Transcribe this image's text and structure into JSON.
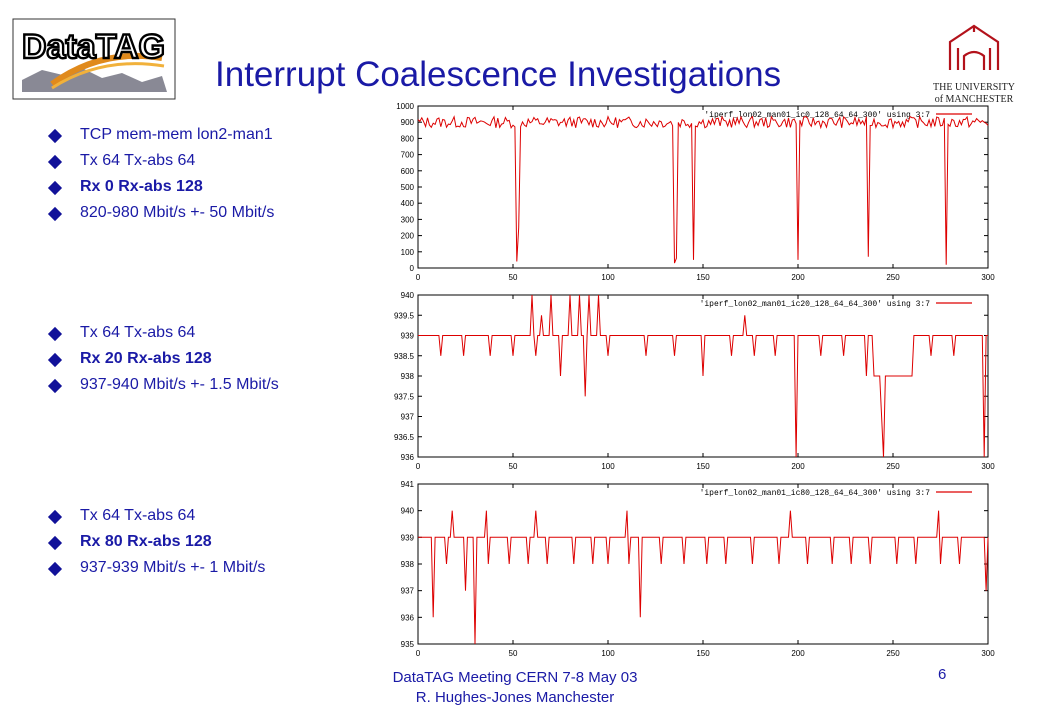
{
  "slide": {
    "title": "Interrupt Coalescence Investigations",
    "logo_left_text": "DataTAG",
    "logo_right_line1": "THE UNIVERSITY",
    "logo_right_line2": "of MANCHESTER",
    "footer_line1": "DataTAG Meeting CERN 7-8 May 03",
    "footer_line2": "R. Hughes-Jones  Manchester",
    "page_number": "6"
  },
  "bullet_groups": [
    {
      "items": [
        {
          "text": "TCP mem-mem  lon2-man1",
          "bold": false
        },
        {
          "text": "Tx 64 Tx-abs 64",
          "bold": false
        },
        {
          "text": "Rx 0 Rx-abs 128",
          "bold": true
        },
        {
          "text": "820-980 Mbit/s +- 50 Mbit/s",
          "bold": false
        }
      ]
    },
    {
      "items": [
        {
          "text": "Tx 64 Tx-abs 64",
          "bold": false
        },
        {
          "text": "Rx 20 Rx-abs 128",
          "bold": true
        },
        {
          "text": "937-940 Mbit/s +- 1.5 Mbit/s",
          "bold": false
        }
      ]
    },
    {
      "items": [
        {
          "text": "Tx 64 Tx-abs 64",
          "bold": false
        },
        {
          "text": "Rx 80 Rx-abs 128",
          "bold": true
        },
        {
          "text": "937-939 Mbit/s +- 1 Mbit/s",
          "bold": false
        }
      ]
    }
  ],
  "chart_data": [
    {
      "type": "line",
      "legend": "'iperf_lon02_man01_ic0_128_64_64_300' using 3:7",
      "legend_position": "top-right",
      "xlim": [
        0,
        300
      ],
      "ylim": [
        0,
        1000
      ],
      "xticks": [
        0,
        50,
        100,
        150,
        200,
        250,
        300
      ],
      "yticks": [
        0,
        100,
        200,
        300,
        400,
        500,
        600,
        700,
        800,
        900,
        1000
      ],
      "color": "#dd0000",
      "baseline": 900,
      "noise": 35,
      "dips": [
        [
          52,
          40
        ],
        [
          53,
          250
        ],
        [
          135,
          30
        ],
        [
          136,
          60
        ],
        [
          145,
          50
        ],
        [
          200,
          50
        ],
        [
          237,
          70
        ],
        [
          278,
          20
        ]
      ]
    },
    {
      "type": "line",
      "legend": "'iperf_lon02_man01_ic20_128_64_64_300' using 3:7",
      "legend_position": "top-right",
      "xlim": [
        0,
        300
      ],
      "ylim": [
        936,
        940
      ],
      "xticks": [
        0,
        50,
        100,
        150,
        200,
        250,
        300
      ],
      "yticks": [
        936,
        936.5,
        937,
        937.5,
        938,
        938.5,
        939,
        939.5,
        940
      ],
      "color": "#dd0000",
      "baseline": 939,
      "dips": [
        [
          12,
          938.5
        ],
        [
          24,
          938.5
        ],
        [
          38,
          938.5
        ],
        [
          50,
          938.5
        ],
        [
          62,
          938.5
        ],
        [
          75,
          938
        ],
        [
          88,
          937.5
        ],
        [
          100,
          938.5
        ],
        [
          120,
          938.5
        ],
        [
          135,
          938.5
        ],
        [
          150,
          938
        ],
        [
          165,
          938.5
        ],
        [
          177,
          938.5
        ],
        [
          188,
          938.5
        ],
        [
          199,
          936
        ],
        [
          212,
          938.5
        ],
        [
          224,
          938.5
        ],
        [
          236,
          938
        ],
        [
          244,
          937
        ],
        [
          245,
          936
        ],
        [
          270,
          938.5
        ],
        [
          282,
          938.5
        ],
        [
          298,
          936
        ]
      ],
      "peaks": [
        [
          60,
          940
        ],
        [
          65,
          939.5
        ],
        [
          70,
          940
        ],
        [
          75,
          940
        ],
        [
          80,
          940
        ],
        [
          85,
          940
        ],
        [
          90,
          940
        ],
        [
          95,
          940
        ],
        [
          100,
          940
        ],
        [
          172,
          939.5
        ]
      ],
      "plateau": [
        [
          240,
          260,
          938
        ]
      ]
    },
    {
      "type": "line",
      "legend": "'iperf_lon02_man01_ic80_128_64_64_300' using 3:7",
      "legend_position": "top-right",
      "xlim": [
        0,
        300
      ],
      "ylim": [
        935,
        941
      ],
      "xticks": [
        0,
        50,
        100,
        150,
        200,
        250,
        300
      ],
      "yticks": [
        935,
        936,
        937,
        938,
        939,
        940,
        941
      ],
      "color": "#dd0000",
      "baseline": 939,
      "dips": [
        [
          8,
          936
        ],
        [
          15,
          938
        ],
        [
          25,
          937
        ],
        [
          30,
          935
        ],
        [
          37,
          938
        ],
        [
          48,
          938
        ],
        [
          58,
          938
        ],
        [
          68,
          938
        ],
        [
          82,
          938
        ],
        [
          92,
          938
        ],
        [
          100,
          938
        ],
        [
          111,
          938
        ],
        [
          117,
          936
        ],
        [
          128,
          938
        ],
        [
          140,
          938
        ],
        [
          152,
          938
        ],
        [
          162,
          938
        ],
        [
          176,
          938
        ],
        [
          190,
          938
        ],
        [
          205,
          938
        ],
        [
          218,
          938
        ],
        [
          228,
          938
        ],
        [
          238,
          938
        ],
        [
          252,
          938
        ],
        [
          262,
          938
        ],
        [
          275,
          938
        ],
        [
          285,
          938
        ],
        [
          299,
          937
        ]
      ],
      "peaks": [
        [
          18,
          940
        ],
        [
          36,
          940
        ],
        [
          62,
          940
        ],
        [
          92,
          940
        ],
        [
          110,
          940
        ],
        [
          176,
          940
        ],
        [
          196,
          940
        ],
        [
          274,
          940
        ]
      ]
    }
  ]
}
